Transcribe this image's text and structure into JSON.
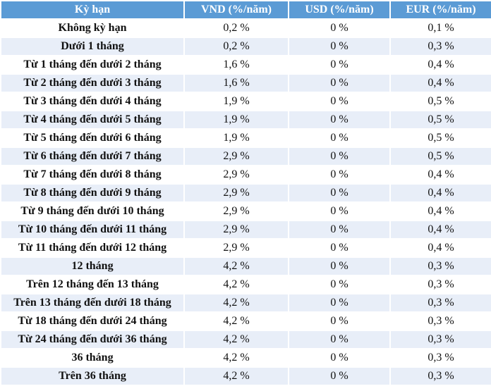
{
  "table": {
    "headers": [
      "Kỳ hạn",
      "VND (%/năm)",
      "USD (%/năm)",
      "EUR (%/năm)"
    ],
    "rows": [
      [
        "Không kỳ hạn",
        "0,2 %",
        "0 %",
        "0,1 %"
      ],
      [
        "Dưới 1 tháng",
        "0,2 %",
        "0 %",
        "0,3 %"
      ],
      [
        "Từ 1 tháng đến dưới 2 tháng",
        "1,6 %",
        "0 %",
        "0,4 %"
      ],
      [
        "Từ 2 tháng đến dưới 3 tháng",
        "1,6 %",
        "0 %",
        "0,4 %"
      ],
      [
        "Từ 3 tháng đến dưới 4 tháng",
        "1,9 %",
        "0 %",
        "0,5 %"
      ],
      [
        "Từ 4 tháng đến dưới 5 tháng",
        "1,9 %",
        "0 %",
        "0,5 %"
      ],
      [
        "Từ 5 tháng đến dưới 6 tháng",
        "1,9 %",
        "0 %",
        "0,5 %"
      ],
      [
        "Từ 6 tháng đến dưới 7 tháng",
        "2,9 %",
        "0 %",
        "0,5 %"
      ],
      [
        "Từ 7 tháng đến dưới 8 tháng",
        "2,9 %",
        "0 %",
        "0,4 %"
      ],
      [
        "Từ 8 tháng đến dưới 9 tháng",
        "2,9 %",
        "0 %",
        "0,4 %"
      ],
      [
        "Từ 9 tháng đến dưới 10 tháng",
        "2,9 %",
        "0 %",
        "0,4 %"
      ],
      [
        "Từ 10 tháng đến dưới 11 tháng",
        "2,9 %",
        "0 %",
        "0,4 %"
      ],
      [
        "Từ 11 tháng đến dưới 12 tháng",
        "2,9 %",
        "0 %",
        "0,4 %"
      ],
      [
        "12 tháng",
        "4,2 %",
        "0 %",
        "0,3 %"
      ],
      [
        "Trên 12 tháng đến 13 tháng",
        "4,2 %",
        "0 %",
        "0,3 %"
      ],
      [
        "Trên 13 tháng đến dưới 18 tháng",
        "4,2 %",
        "0 %",
        "0,3 %"
      ],
      [
        "Từ 18 tháng đến dưới 24 tháng",
        "4,2 %",
        "0 %",
        "0,3 %"
      ],
      [
        "Từ 24 tháng đến dưới 36 tháng",
        "4,2 %",
        "0 %",
        "0,3 %"
      ],
      [
        "36 tháng",
        "4,2 %",
        "0 %",
        "0,3 %"
      ],
      [
        "Trên 36 tháng",
        "4,2 %",
        "0 %",
        "0,3 %"
      ]
    ]
  },
  "colors": {
    "header_bg": "#5b9bd5",
    "header_text": "#ffffff",
    "row_alt_bg": "#e8eef8"
  }
}
